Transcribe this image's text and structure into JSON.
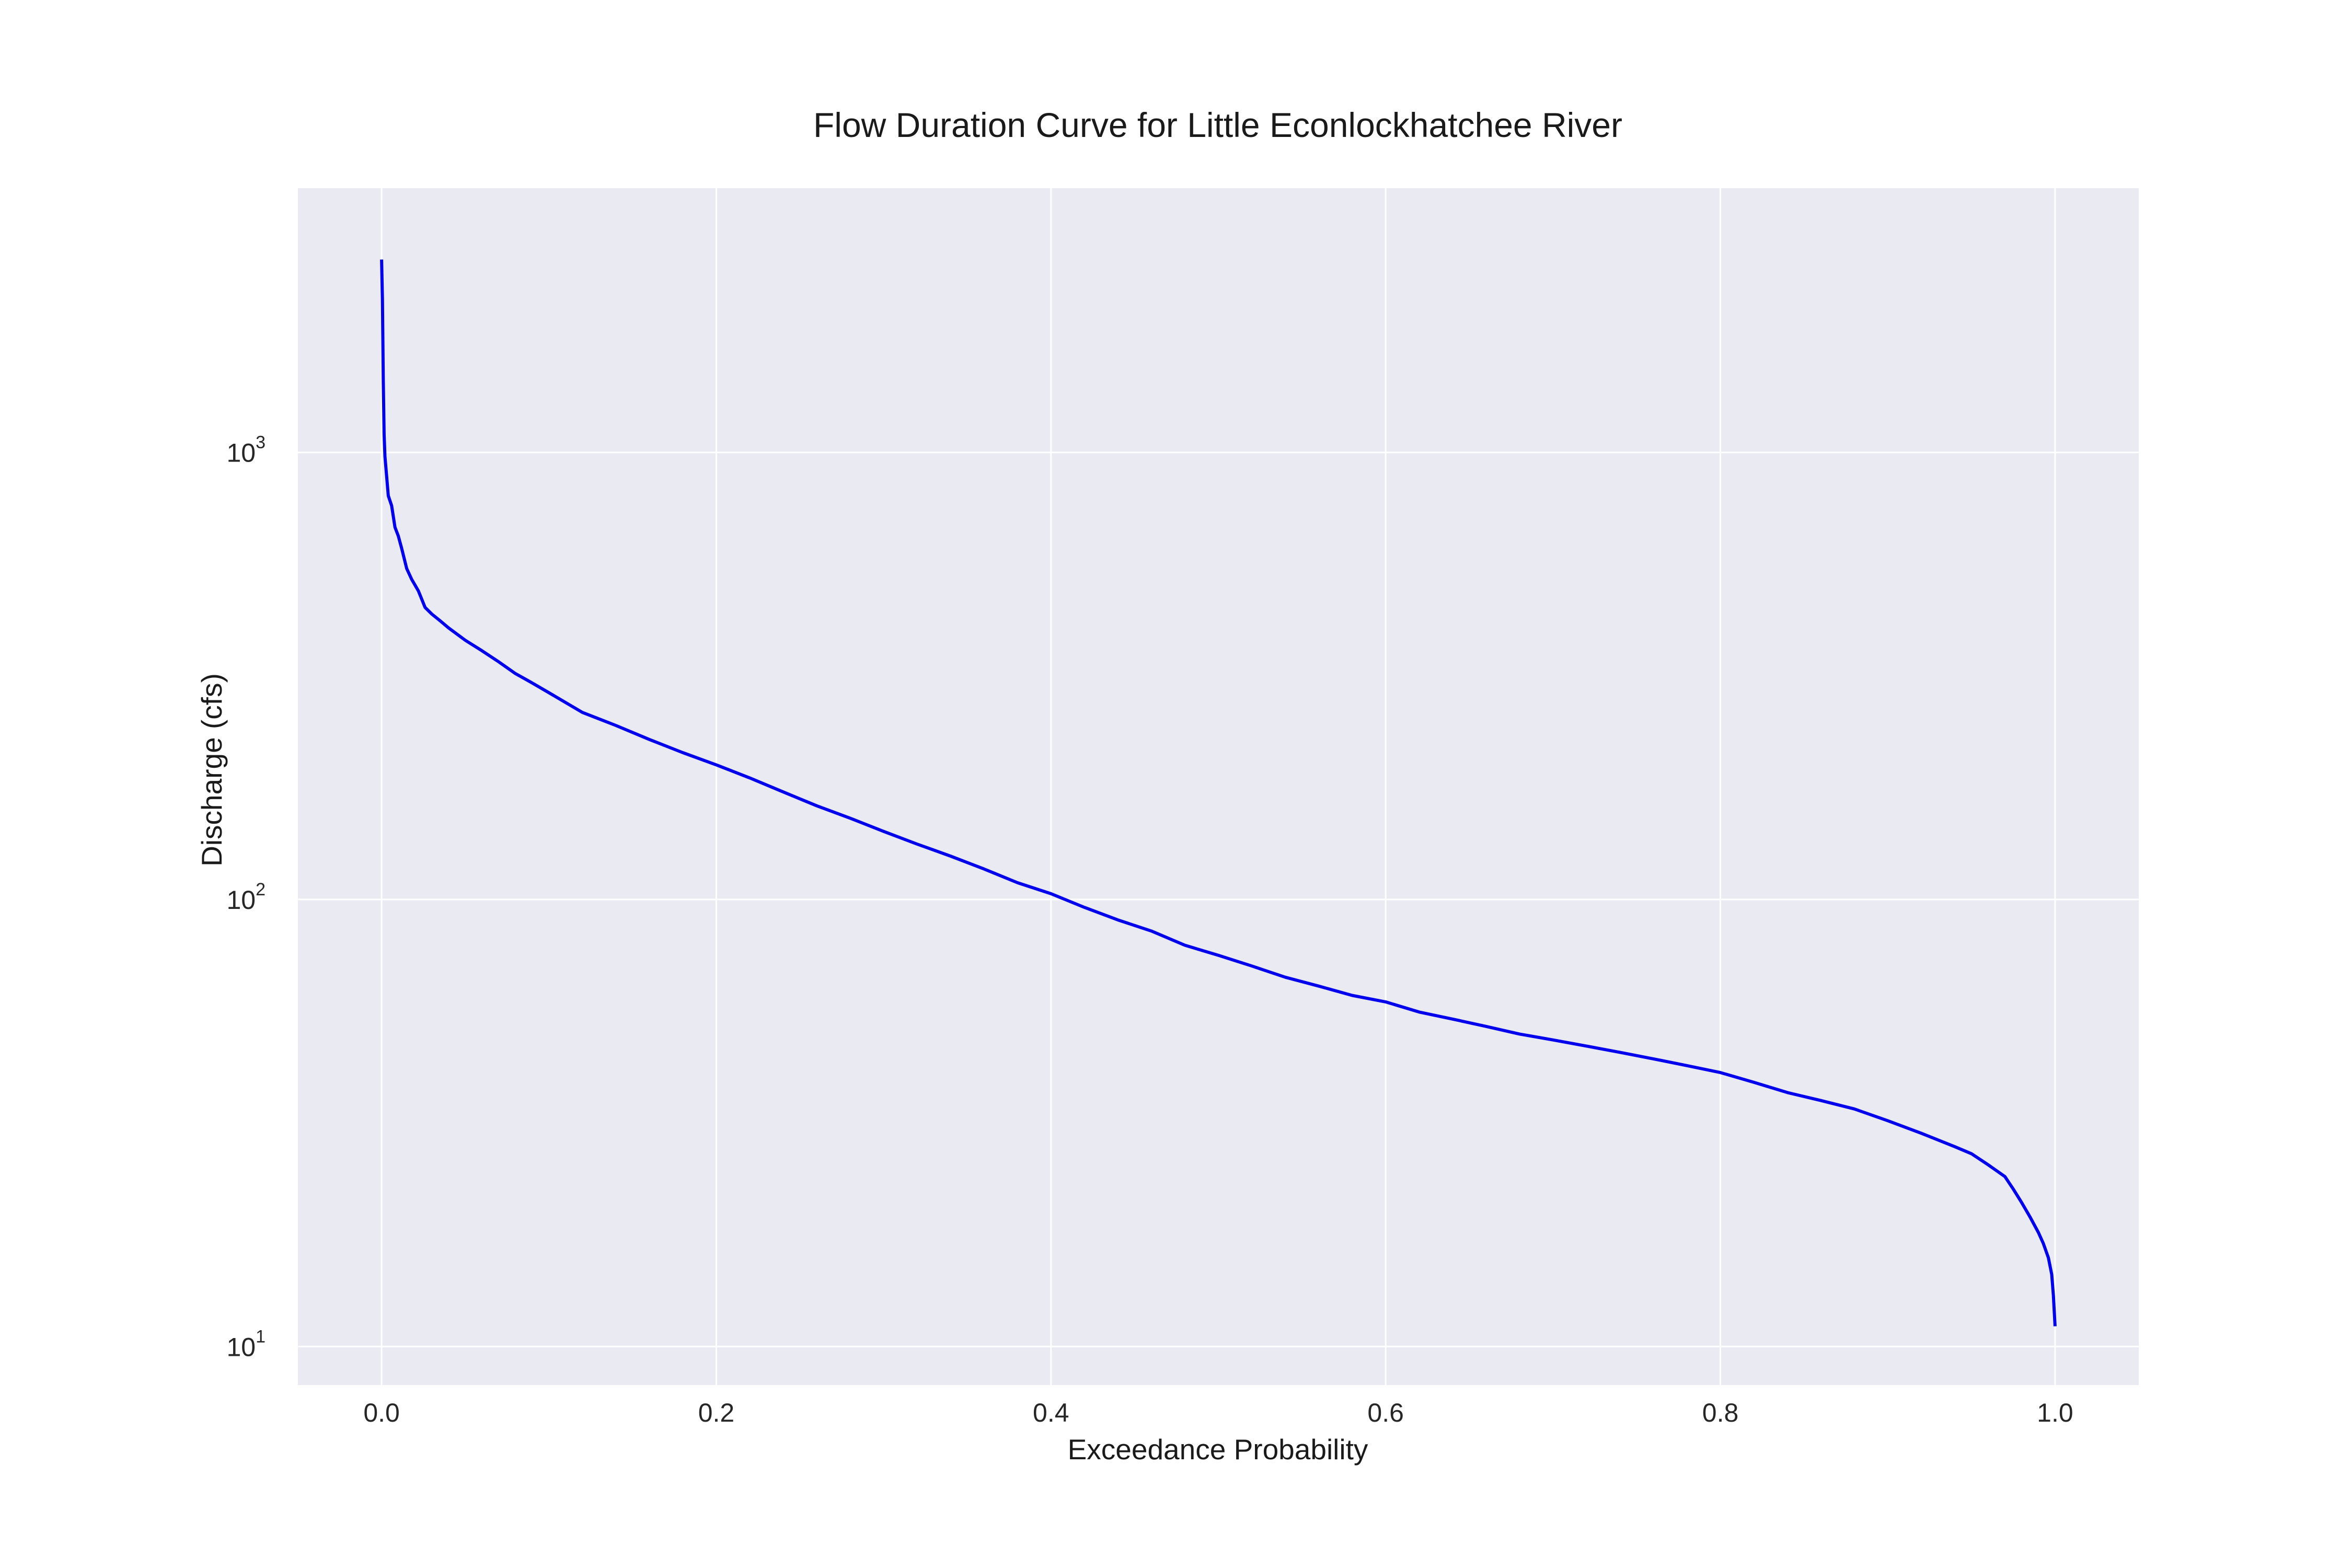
{
  "chart_data": {
    "type": "line",
    "title": "Flow Duration Curve for Little Econlockhatchee River",
    "xlabel": "Exceedance Probability",
    "ylabel": "Discharge (cfs)",
    "xscale": "linear",
    "yscale": "log",
    "xlim": [
      -0.05,
      1.05
    ],
    "ylim": [
      8.2,
      3900
    ],
    "grid": true,
    "legend": "none",
    "colors": {
      "background": "#eaeaf2",
      "grid": "#ffffff",
      "line": "#0000ee"
    },
    "x_ticks": [
      {
        "value": 0.0,
        "label": "0.0"
      },
      {
        "value": 0.2,
        "label": "0.2"
      },
      {
        "value": 0.4,
        "label": "0.4"
      },
      {
        "value": 0.6,
        "label": "0.6"
      },
      {
        "value": 0.8,
        "label": "0.8"
      },
      {
        "value": 1.0,
        "label": "1.0"
      }
    ],
    "y_ticks": [
      {
        "value": 10,
        "base": "10",
        "exp": "1"
      },
      {
        "value": 100,
        "base": "10",
        "exp": "2"
      },
      {
        "value": 1000,
        "base": "10",
        "exp": "3"
      }
    ],
    "series": [
      {
        "x": [
          0.0,
          0.0005,
          0.001,
          0.0015,
          0.002,
          0.004,
          0.006,
          0.008,
          0.01,
          0.012,
          0.015,
          0.018,
          0.022,
          0.026,
          0.03,
          0.035,
          0.04,
          0.05,
          0.06,
          0.07,
          0.08,
          0.09,
          0.1,
          0.12,
          0.14,
          0.16,
          0.18,
          0.2,
          0.22,
          0.24,
          0.26,
          0.28,
          0.3,
          0.32,
          0.34,
          0.36,
          0.38,
          0.4,
          0.42,
          0.44,
          0.46,
          0.48,
          0.5,
          0.52,
          0.54,
          0.56,
          0.58,
          0.6,
          0.62,
          0.64,
          0.66,
          0.68,
          0.7,
          0.72,
          0.74,
          0.76,
          0.78,
          0.8,
          0.82,
          0.84,
          0.86,
          0.88,
          0.9,
          0.92,
          0.94,
          0.95,
          0.96,
          0.97,
          0.975,
          0.98,
          0.985,
          0.99,
          0.993,
          0.996,
          0.998,
          0.999,
          0.9995,
          1.0
        ],
        "y": [
          2700,
          2200,
          1450,
          1100,
          980,
          800,
          760,
          680,
          650,
          610,
          550,
          520,
          490,
          450,
          435,
          420,
          405,
          380,
          360,
          340,
          320,
          305,
          290,
          262,
          245,
          228,
          213,
          200,
          187,
          174,
          162,
          152,
          142,
          133,
          125,
          117,
          109,
          103,
          96,
          90,
          85,
          79,
          75,
          71,
          67,
          64,
          61,
          59,
          56,
          54,
          52,
          50,
          48.5,
          47,
          45.5,
          44,
          42.5,
          41,
          39,
          37,
          35.5,
          34,
          32,
          30,
          28,
          27,
          25.5,
          24,
          22.5,
          21,
          19.5,
          18,
          17,
          15.8,
          14.5,
          13,
          12,
          11.1
        ]
      }
    ]
  }
}
